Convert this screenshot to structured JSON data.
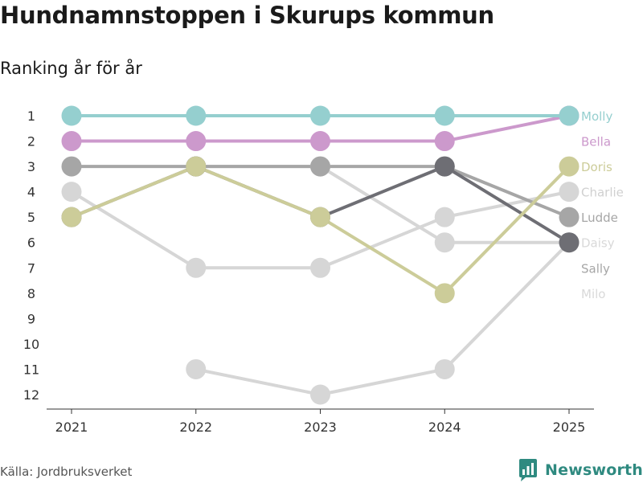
{
  "title": "Hundnamnstoppen i Skurups kommun",
  "subtitle": "Ranking år för år",
  "source": "Källa: Jordbruksverket",
  "brand": "Newsworthy",
  "chart_data": {
    "type": "line",
    "subtype": "bump",
    "x": [
      "2021",
      "2022",
      "2023",
      "2024",
      "2025"
    ],
    "ylim": [
      1,
      12
    ],
    "y_ticks": [
      1,
      2,
      3,
      4,
      5,
      6,
      7,
      8,
      9,
      10,
      11,
      12
    ],
    "y_inverted": true,
    "series": [
      {
        "name": "Molly",
        "color": "#95cfcf",
        "values": [
          1,
          1,
          1,
          1,
          1
        ]
      },
      {
        "name": "Bella",
        "color": "#cc99cc",
        "values": [
          2,
          2,
          2,
          2,
          1
        ]
      },
      {
        "name": "Doris",
        "color": "#cccc99",
        "values": [
          5,
          3,
          5,
          8,
          3
        ]
      },
      {
        "name": "Charlie",
        "color": "#d6d6d6",
        "values": [
          4,
          7,
          7,
          5,
          4
        ]
      },
      {
        "name": "Ludde",
        "color": "#a6a6a6",
        "values": [
          3,
          3,
          3,
          3,
          5
        ]
      },
      {
        "name": "Daisy",
        "color": "#d6d6d6",
        "values": [
          null,
          3,
          3,
          6,
          6
        ]
      },
      {
        "name": "Sally",
        "color": "#6e6e74",
        "values": [
          5,
          3,
          5,
          3,
          6
        ]
      },
      {
        "name": "Milo",
        "color": "#d6d6d6",
        "values": [
          null,
          11,
          12,
          11,
          6
        ]
      }
    ],
    "legend_label_colors": {
      "Molly": "#95cfcf",
      "Bella": "#cc99cc",
      "Doris": "#cccc99",
      "Charlie": "#d0d0d0",
      "Ludde": "#a6a6a6",
      "Daisy": "#d9d9d9",
      "Sally": "#a6a6a6",
      "Milo": "#d9d9d9"
    }
  }
}
